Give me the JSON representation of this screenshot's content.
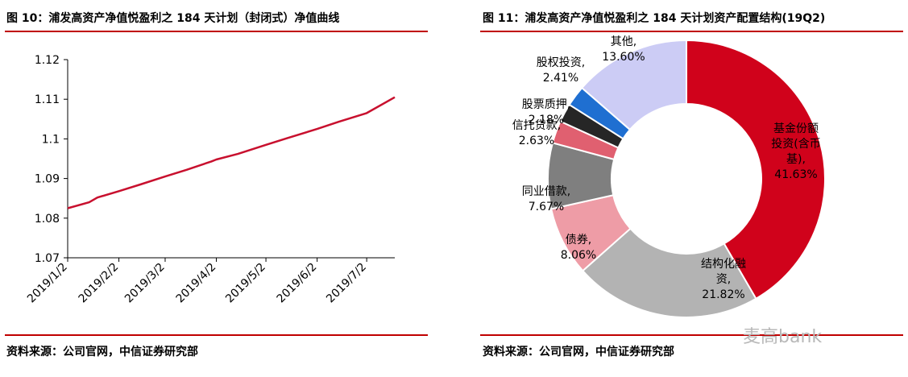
{
  "left_panel": {
    "title": "图 10：浦发高资产净值悦盈利之 184 天计划（封闭式）净值曲线",
    "source": "资料来源：公司官网，中信证券研究部"
  },
  "right_panel": {
    "title": "图 11：浦发高资产净值悦盈利之 184 天计划资产配置结构(19Q2)",
    "source": "资料来源：公司官网，中信证券研究部"
  },
  "watermark": "麦高bank",
  "colors": {
    "accent_red": "#c00000",
    "line": "#c8102e"
  },
  "chart_data": [
    {
      "type": "line",
      "title": "",
      "xlabel": "",
      "ylabel": "",
      "x_ticks": [
        "2019/1/2",
        "2019/2/2",
        "2019/3/2",
        "2019/4/2",
        "2019/5/2",
        "2019/6/2",
        "2019/7/2"
      ],
      "y_ticks": [
        "1.07",
        "1.08",
        "1.09",
        "1.1",
        "1.11",
        "1.12"
      ],
      "ylim": [
        1.07,
        1.12
      ],
      "xlim": [
        "2019/1/2",
        "2019/7/19"
      ],
      "grid": false,
      "series": [
        {
          "color": "#c8102e",
          "x": [
            "2019/1/2",
            "2019/1/15",
            "2019/1/20",
            "2019/2/2",
            "2019/2/15",
            "2019/3/2",
            "2019/3/15",
            "2019/3/30",
            "2019/4/2",
            "2019/4/15",
            "2019/5/2",
            "2019/5/15",
            "2019/6/2",
            "2019/6/15",
            "2019/7/2",
            "2019/7/19"
          ],
          "y": [
            1.0825,
            1.084,
            1.0852,
            1.0868,
            1.0885,
            1.0905,
            1.0922,
            1.0943,
            1.0948,
            1.0962,
            1.0985,
            1.1002,
            1.1025,
            1.1043,
            1.1065,
            1.1105
          ]
        }
      ]
    },
    {
      "type": "pie",
      "title": "",
      "donut": true,
      "legend": "none",
      "slices": [
        {
          "label": "基金份额投资(含币基)",
          "text_lines": [
            "基金份额",
            "投资(含币",
            "基),"
          ],
          "value_text": "41.63%",
          "value": 41.63,
          "color": "#d0021b"
        },
        {
          "label": "结构化融资",
          "text_lines": [
            "结构化融",
            "资,"
          ],
          "value_text": "21.82%",
          "value": 21.82,
          "color": "#b3b3b3"
        },
        {
          "label": "债券",
          "text_lines": [
            "债券,"
          ],
          "value_text": "8.06%",
          "value": 8.06,
          "color": "#ee9ca6"
        },
        {
          "label": "同业借款",
          "text_lines": [
            "同业借款,"
          ],
          "value_text": "7.67%",
          "value": 7.67,
          "color": "#7f7f7f"
        },
        {
          "label": "信托贷款",
          "text_lines": [
            "信托贷款,"
          ],
          "value_text": "2.63%",
          "value": 2.63,
          "color": "#e06070"
        },
        {
          "label": "股票质押",
          "text_lines": [
            "股票质押,"
          ],
          "value_text": "2.18%",
          "value": 2.18,
          "color": "#262626"
        },
        {
          "label": "股权投资",
          "text_lines": [
            "股权投资,"
          ],
          "value_text": "2.41%",
          "value": 2.41,
          "color": "#1f6fd1"
        },
        {
          "label": "其他",
          "text_lines": [
            "其他,"
          ],
          "value_text": "13.60%",
          "value": 13.6,
          "color": "#ccccf5"
        }
      ]
    }
  ]
}
